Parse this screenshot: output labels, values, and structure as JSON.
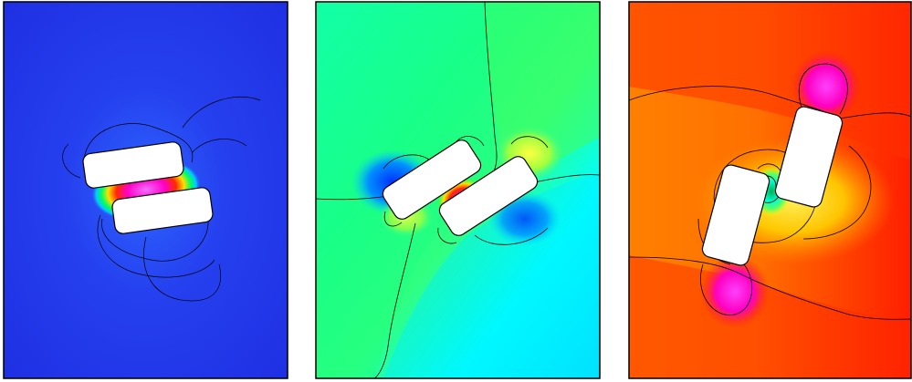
{
  "figure": {
    "panels": [
      {
        "id": "panel-1",
        "background": "#1f35e6",
        "field_colors": [
          "#2a2fe8",
          "#2b64ff",
          "#00c6ff",
          "#00ff7a",
          "#ffd200",
          "#ff3a00",
          "#ff00c8",
          "#e87cff"
        ]
      },
      {
        "id": "panel-2",
        "left_color": "#1cff7a",
        "right_color": "#1cffff",
        "accent_colors": [
          "#0a6bff",
          "#ffef00",
          "#ff3a00",
          "#ff00c8"
        ]
      },
      {
        "id": "panel-3",
        "background": "#ff3a00",
        "field_colors": [
          "#ff7a00",
          "#ffcc00",
          "#ff00ff",
          "#00ffd2",
          "#00b000"
        ]
      }
    ],
    "contour_color": "#000000",
    "obstacle_fill": "#ffffff"
  }
}
